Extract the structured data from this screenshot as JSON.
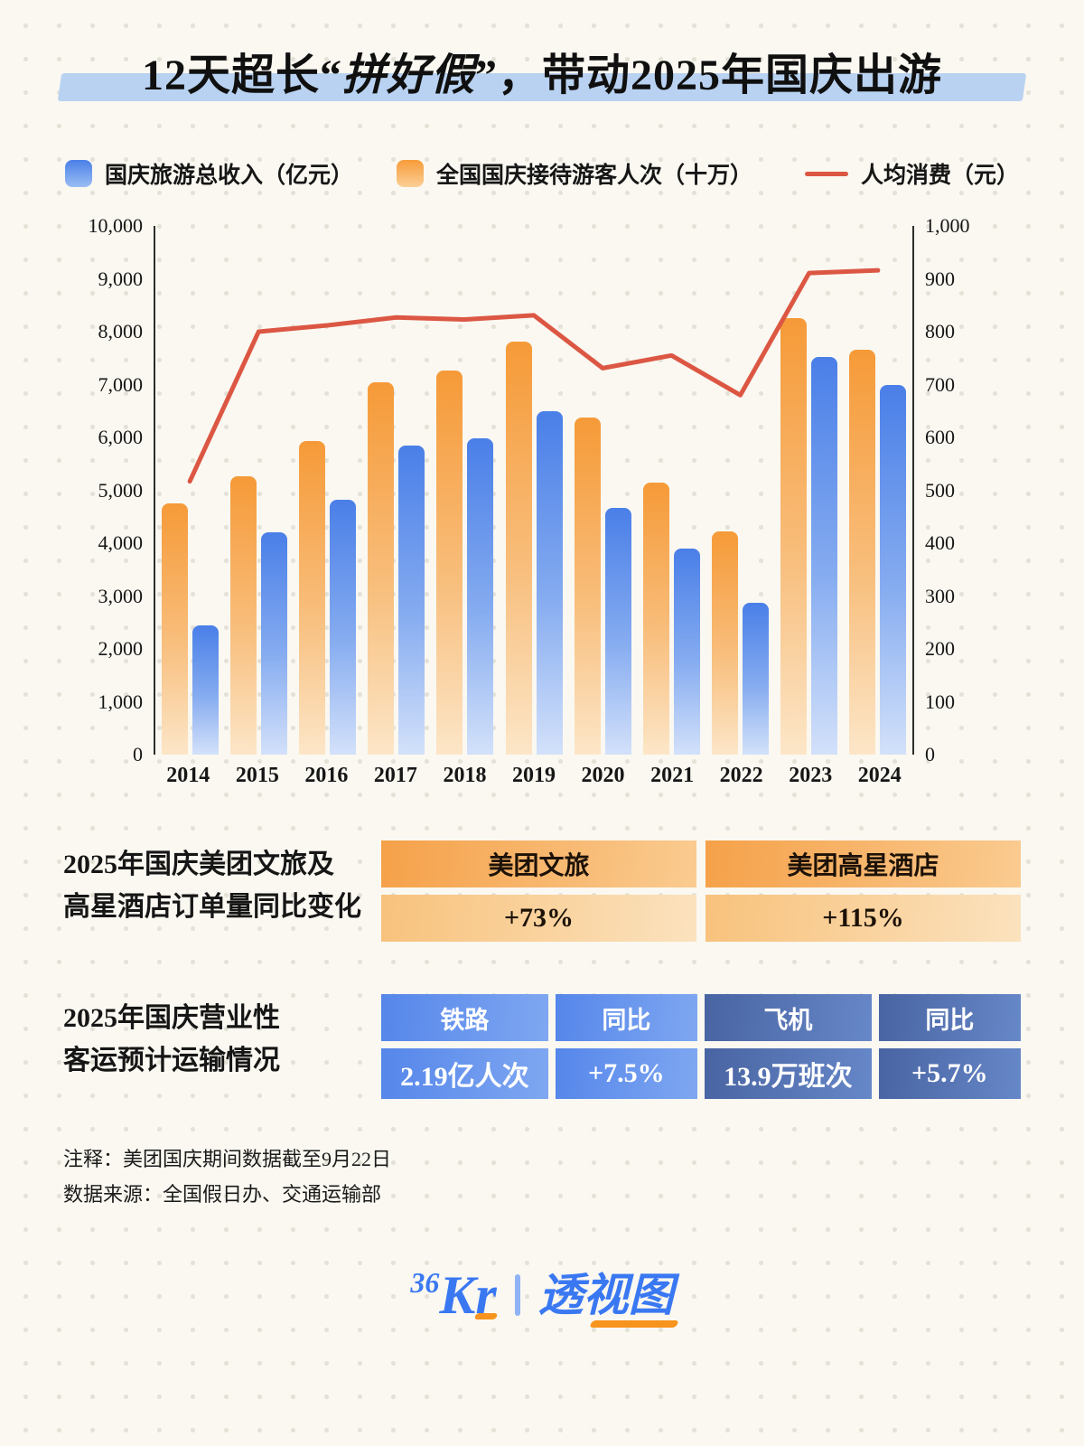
{
  "title": {
    "pre": "12天超长“",
    "accent": "拼好假",
    "post": "”，带动2025年国庆出游"
  },
  "legend": {
    "revenue": "国庆旅游总收入（亿元）",
    "visitors": "全国国庆接待游客人次（十万）",
    "per_capita": "人均消费（元）"
  },
  "chart_data": {
    "type": "bar+line",
    "categories": [
      "2014",
      "2015",
      "2016",
      "2017",
      "2018",
      "2019",
      "2020",
      "2021",
      "2022",
      "2023",
      "2024"
    ],
    "series": [
      {
        "name": "全国国庆接待游客人次（十万）",
        "type": "bar",
        "color_key": "orange",
        "axis": "left",
        "values": [
          4750,
          5260,
          5930,
          7050,
          7260,
          7820,
          6370,
          5150,
          4220,
          8260,
          7650
        ]
      },
      {
        "name": "国庆旅游总收入（亿元）",
        "type": "bar",
        "color_key": "blue",
        "axis": "left",
        "values": [
          2450,
          4210,
          4820,
          5840,
          5990,
          6500,
          4660,
          3890,
          2870,
          7530,
          7000
        ]
      },
      {
        "name": "人均消费（元）",
        "type": "line",
        "color_key": "red",
        "axis": "right",
        "values": [
          517,
          800,
          812,
          827,
          823,
          831,
          731,
          755,
          680,
          911,
          916
        ]
      }
    ],
    "left_axis": {
      "min": 0,
      "max": 10000,
      "step": 1000
    },
    "right_axis": {
      "min": 0,
      "max": 1000,
      "step": 100
    },
    "grid": false,
    "legend_position": "top"
  },
  "meituan_section": {
    "label_lines": [
      "2025年国庆美团文旅及",
      "高星酒店订单量同比变化"
    ],
    "cards": [
      {
        "title": "美团文旅",
        "value": "+73%"
      },
      {
        "title": "美团高星酒店",
        "value": "+115%"
      }
    ]
  },
  "transport_section": {
    "label_lines": [
      "2025年国庆营业性",
      "客运预计运输情况"
    ],
    "columns": [
      {
        "header": "铁路",
        "value": "2.19亿人次"
      },
      {
        "header": "同比",
        "value": "+7.5%"
      },
      {
        "header": "飞机",
        "value": "13.9万班次"
      },
      {
        "header": "同比",
        "value": "+5.7%"
      }
    ]
  },
  "notes": [
    "注释：美团国庆期间数据截至9月22日",
    "数据来源：全国假日办、交通运输部"
  ],
  "footer": {
    "brand_number": "36",
    "brand_kr": "Kr",
    "column_name": "透视图"
  },
  "colors": {
    "background": "#FAF8F1",
    "title_highlight": "#B9D2F1",
    "blue_bar_top": "#4A7FE8",
    "blue_bar_bottom": "#D3E1FA",
    "orange_bar_top": "#F69A38",
    "orange_bar_bottom": "#FCE6C8",
    "line_red": "#DC5743",
    "table_light_blue": "#5586EA",
    "table_dark_blue": "#4964A2",
    "brand_blue": "#3A78F2",
    "brand_orange": "#F7941E"
  }
}
